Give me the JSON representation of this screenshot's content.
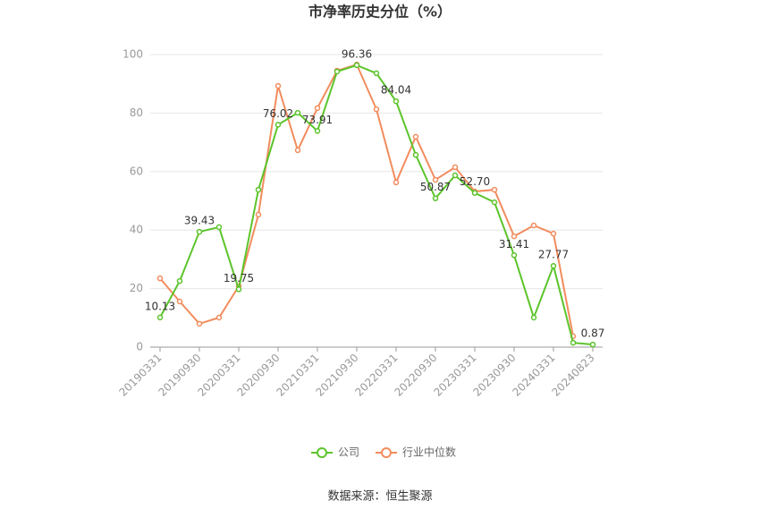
{
  "chart_data": {
    "type": "line",
    "title": "市净率历史分位（%）",
    "categories": [
      "20190331",
      null,
      "20190930",
      null,
      "20200331",
      null,
      "20200930",
      null,
      "20210331",
      null,
      "20210930",
      null,
      "20220331",
      null,
      "20220930",
      null,
      "20230331",
      null,
      "20230930",
      null,
      "20240331",
      null,
      "20240823"
    ],
    "series": [
      {
        "name": "公司",
        "color": "#5cc42b",
        "values": [
          10.13,
          22.6,
          39.43,
          41.0,
          19.75,
          53.8,
          76.02,
          80.1,
          73.91,
          94.2,
          96.36,
          93.6,
          84.04,
          65.7,
          50.87,
          58.7,
          52.7,
          49.5,
          31.41,
          10.1,
          27.77,
          1.5,
          0.87
        ],
        "value_labels": [
          "10.13",
          null,
          "39.43",
          null,
          "19.75",
          null,
          "76.02",
          null,
          "73.91",
          null,
          "96.36",
          null,
          "84.04",
          null,
          "50.87",
          null,
          "52.70",
          null,
          "31.41",
          null,
          "27.77",
          null,
          "0.87"
        ]
      },
      {
        "name": "行业中位数",
        "color": "#f28c5e",
        "values": [
          23.5,
          15.6,
          8.0,
          10.1,
          20.8,
          45.3,
          89.3,
          67.3,
          81.7,
          94.5,
          96.6,
          81.3,
          56.3,
          71.9,
          57.2,
          61.5,
          53.2,
          53.8,
          37.9,
          41.6,
          38.8,
          3.7,
          null
        ]
      }
    ],
    "ylim": [
      0,
      100
    ],
    "yticks": [
      0,
      20,
      40,
      60,
      80,
      100
    ],
    "grid": true,
    "source": "数据来源：恒生聚源"
  }
}
